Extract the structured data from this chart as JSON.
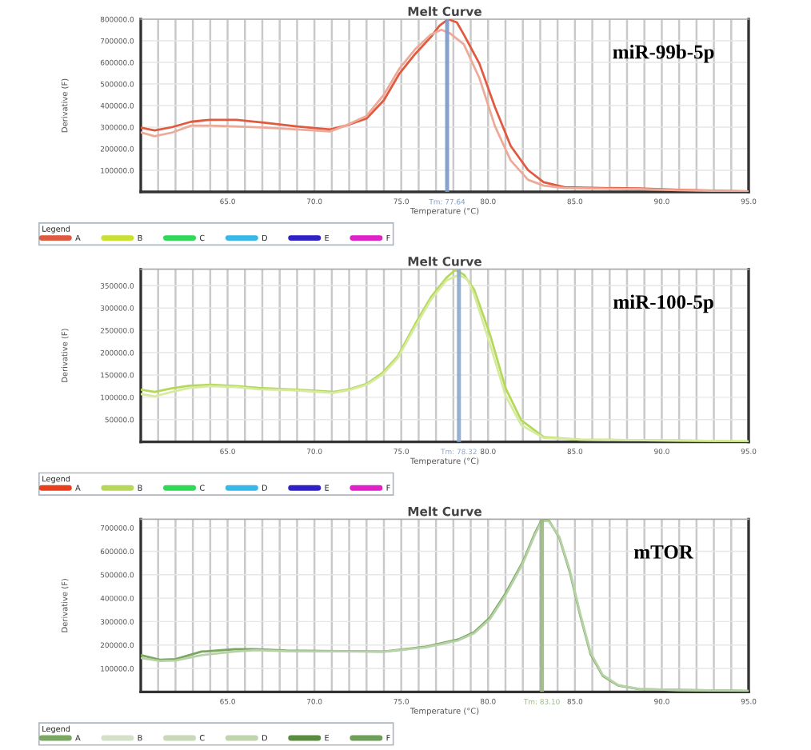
{
  "chart_data": [
    {
      "type": "line",
      "title": "Melt Curve",
      "xlabel": "Temperature (°C)",
      "ylabel": "Derivative (F)",
      "legend_title": "Legend",
      "legend": "bottom",
      "grid": true,
      "annotations": [
        "miR-99b-5p"
      ],
      "xlim": [
        60,
        95
      ],
      "ylim": [
        0,
        800000
      ],
      "xticks": [
        {
          "value": 60,
          "label": null
        },
        {
          "value": 61,
          "label": null
        },
        {
          "value": 62,
          "label": null
        },
        {
          "value": 63,
          "label": null
        },
        {
          "value": 64,
          "label": null
        },
        {
          "value": 65,
          "label": "65.0"
        },
        {
          "value": 66,
          "label": null
        },
        {
          "value": 67,
          "label": null
        },
        {
          "value": 68,
          "label": null
        },
        {
          "value": 69,
          "label": null
        },
        {
          "value": 70,
          "label": "70.0"
        },
        {
          "value": 71,
          "label": null
        },
        {
          "value": 72,
          "label": null
        },
        {
          "value": 73,
          "label": null
        },
        {
          "value": 74,
          "label": null
        },
        {
          "value": 75,
          "label": "75.0"
        },
        {
          "value": 76,
          "label": null
        },
        {
          "value": 77,
          "label": null
        },
        {
          "value": 78,
          "label": null
        },
        {
          "value": 79,
          "label": null
        },
        {
          "value": 80,
          "label": "80.0"
        },
        {
          "value": 81,
          "label": null
        },
        {
          "value": 82,
          "label": null
        },
        {
          "value": 83,
          "label": null
        },
        {
          "value": 84,
          "label": null
        },
        {
          "value": 85,
          "label": "85.0"
        },
        {
          "value": 86,
          "label": null
        },
        {
          "value": 87,
          "label": null
        },
        {
          "value": 88,
          "label": null
        },
        {
          "value": 89,
          "label": null
        },
        {
          "value": 90,
          "label": "90.0"
        },
        {
          "value": 91,
          "label": null
        },
        {
          "value": 92,
          "label": null
        },
        {
          "value": 93,
          "label": null
        },
        {
          "value": 94,
          "label": null
        },
        {
          "value": 95,
          "label": "95.0"
        }
      ],
      "yticks": [
        {
          "value": 100000,
          "label": "100000.0"
        },
        {
          "value": 200000,
          "label": "200000.0"
        },
        {
          "value": 300000,
          "label": "300000.0"
        },
        {
          "value": 400000,
          "label": "400000.0"
        },
        {
          "value": 500000,
          "label": "500000.0"
        },
        {
          "value": 600000,
          "label": "600000.0"
        },
        {
          "value": 700000,
          "label": "700000.0"
        },
        {
          "value": 800000,
          "label": "800000.0"
        }
      ],
      "ref_lines": [
        {
          "axis": "x",
          "value": 77.64,
          "label": "Tm: 77.64",
          "color": "#7a98c8"
        }
      ],
      "series": [
        {
          "name": "A",
          "color": "#e05a40",
          "x": [
            60,
            60.8,
            61.8,
            62.9,
            64,
            65.5,
            67.2,
            69,
            70.9,
            71.8,
            73,
            74,
            74.9,
            75.8,
            76.7,
            77.2,
            77.7,
            78.2,
            78.6,
            79.5,
            80.4,
            81.3,
            82.3,
            83.2,
            84.4,
            86.5,
            88.7,
            91,
            93,
            95
          ],
          "values": [
            298000,
            285000,
            300000,
            325000,
            334000,
            334000,
            320000,
            303000,
            289000,
            307000,
            340000,
            425000,
            549000,
            639000,
            717000,
            770000,
            800000,
            785000,
            729000,
            594000,
            392000,
            213000,
            101000,
            45000,
            22000,
            18000,
            16000,
            10000,
            6000,
            2000
          ]
        },
        {
          "color": "#eeaa98",
          "x": [
            60,
            60.8,
            61.8,
            62.9,
            64,
            65.5,
            67.2,
            69,
            70.9,
            71.8,
            73,
            74,
            74.9,
            75.8,
            76.7,
            77.3,
            77.8,
            78.6,
            79.5,
            80.4,
            81.3,
            82.3,
            83.2,
            84.4,
            86.5,
            88.7,
            91,
            93,
            95
          ],
          "values": [
            276000,
            258000,
            275000,
            307000,
            307000,
            303000,
            298000,
            289000,
            280000,
            307000,
            352000,
            450000,
            572000,
            661000,
            729000,
            751000,
            735000,
            684000,
            527000,
            303000,
            146000,
            56000,
            29000,
            18000,
            15000,
            13000,
            8000,
            5000,
            2000
          ]
        },
        {
          "name": "B",
          "color": "#c8e030"
        },
        {
          "name": "C",
          "color": "#30d858"
        },
        {
          "name": "D",
          "color": "#38b8e8"
        },
        {
          "name": "E",
          "color": "#3020c8"
        },
        {
          "name": "F",
          "color": "#e020c8"
        }
      ]
    },
    {
      "type": "line",
      "title": "Melt Curve",
      "xlabel": "Temperature (°C)",
      "ylabel": "Derivative (F)",
      "legend_title": "Legend",
      "legend": "bottom",
      "grid": true,
      "annotations": [
        "miR-100-5p"
      ],
      "xlim": [
        60,
        95
      ],
      "ylim": [
        0,
        387000
      ],
      "xticks": [
        {
          "value": 60,
          "label": null
        },
        {
          "value": 61,
          "label": null
        },
        {
          "value": 62,
          "label": null
        },
        {
          "value": 63,
          "label": null
        },
        {
          "value": 64,
          "label": null
        },
        {
          "value": 65,
          "label": "65.0"
        },
        {
          "value": 66,
          "label": null
        },
        {
          "value": 67,
          "label": null
        },
        {
          "value": 68,
          "label": null
        },
        {
          "value": 69,
          "label": null
        },
        {
          "value": 70,
          "label": "70.0"
        },
        {
          "value": 71,
          "label": null
        },
        {
          "value": 72,
          "label": null
        },
        {
          "value": 73,
          "label": null
        },
        {
          "value": 74,
          "label": null
        },
        {
          "value": 75,
          "label": "75.0"
        },
        {
          "value": 76,
          "label": null
        },
        {
          "value": 77,
          "label": null
        },
        {
          "value": 78,
          "label": null
        },
        {
          "value": 79,
          "label": null
        },
        {
          "value": 80,
          "label": "80.0"
        },
        {
          "value": 81,
          "label": null
        },
        {
          "value": 82,
          "label": null
        },
        {
          "value": 83,
          "label": null
        },
        {
          "value": 84,
          "label": null
        },
        {
          "value": 85,
          "label": "85.0"
        },
        {
          "value": 86,
          "label": null
        },
        {
          "value": 87,
          "label": null
        },
        {
          "value": 88,
          "label": null
        },
        {
          "value": 89,
          "label": null
        },
        {
          "value": 90,
          "label": "90.0"
        },
        {
          "value": 91,
          "label": null
        },
        {
          "value": 92,
          "label": null
        },
        {
          "value": 93,
          "label": null
        },
        {
          "value": 94,
          "label": null
        },
        {
          "value": 95,
          "label": "95.0"
        }
      ],
      "yticks": [
        {
          "value": 50000,
          "label": "50000.0"
        },
        {
          "value": 100000,
          "label": "100000.0"
        },
        {
          "value": 150000,
          "label": "150000.0"
        },
        {
          "value": 200000,
          "label": "200000.0"
        },
        {
          "value": 250000,
          "label": "250000.0"
        },
        {
          "value": 300000,
          "label": "300000.0"
        },
        {
          "value": 350000,
          "label": "350000.0"
        }
      ],
      "ref_lines": [
        {
          "axis": "x",
          "value": 78.32,
          "label": "Tm: 78.32",
          "color": "#8aa8cc"
        }
      ],
      "series": [
        {
          "name": "A",
          "color": "#e8401c"
        },
        {
          "name": "B",
          "color": "#b5d85a",
          "x": [
            60,
            60.8,
            61.8,
            62.8,
            64,
            65.5,
            66.8,
            68.5,
            69.9,
            71.1,
            72,
            73,
            73.9,
            74.8,
            75.8,
            76.7,
            77.6,
            78.1,
            78.6,
            79.2,
            80.1,
            81,
            81.9,
            83.2,
            85.3,
            88,
            91,
            95
          ],
          "values": [
            117000,
            112000,
            120000,
            126000,
            128000,
            125000,
            121000,
            118000,
            115000,
            112000,
            118000,
            130000,
            154000,
            192000,
            264000,
            324000,
            368000,
            385000,
            375000,
            341000,
            242000,
            121000,
            49000,
            11000,
            5000,
            4000,
            3000,
            1000
          ]
        },
        {
          "color": "#d6eba0",
          "x": [
            60,
            60.8,
            61.8,
            62.8,
            64,
            65.5,
            66.8,
            68.5,
            69.9,
            71.1,
            72,
            73,
            73.9,
            74.8,
            75.8,
            76.7,
            77.6,
            78.3,
            78.8,
            79.2,
            80.1,
            81,
            81.9,
            83.2,
            85.3,
            88,
            91,
            95
          ],
          "values": [
            107000,
            102000,
            112000,
            121000,
            125000,
            123000,
            118000,
            116000,
            113000,
            110000,
            116000,
            128000,
            150000,
            188000,
            258000,
            318000,
            362000,
            374000,
            365000,
            330000,
            220000,
            104000,
            38000,
            9000,
            5000,
            4000,
            3000,
            1000
          ]
        },
        {
          "name": "C",
          "color": "#30d858"
        },
        {
          "name": "D",
          "color": "#38b8e8"
        },
        {
          "name": "E",
          "color": "#3020c8"
        },
        {
          "name": "F",
          "color": "#e020c8"
        }
      ]
    },
    {
      "type": "line",
      "title": "Melt Curve",
      "xlabel": "Temperature (°C)",
      "ylabel": "Derivative (F)",
      "legend_title": "Legend",
      "legend": "bottom",
      "grid": true,
      "annotations": [
        "mTOR"
      ],
      "xlim": [
        60,
        95
      ],
      "ylim": [
        0,
        737000
      ],
      "xticks": [
        {
          "value": 60,
          "label": null
        },
        {
          "value": 61,
          "label": null
        },
        {
          "value": 62,
          "label": null
        },
        {
          "value": 63,
          "label": null
        },
        {
          "value": 64,
          "label": null
        },
        {
          "value": 65,
          "label": "65.0"
        },
        {
          "value": 66,
          "label": null
        },
        {
          "value": 67,
          "label": null
        },
        {
          "value": 68,
          "label": null
        },
        {
          "value": 69,
          "label": null
        },
        {
          "value": 70,
          "label": "70.0"
        },
        {
          "value": 71,
          "label": null
        },
        {
          "value": 72,
          "label": null
        },
        {
          "value": 73,
          "label": null
        },
        {
          "value": 74,
          "label": null
        },
        {
          "value": 75,
          "label": "75.0"
        },
        {
          "value": 76,
          "label": null
        },
        {
          "value": 77,
          "label": null
        },
        {
          "value": 78,
          "label": null
        },
        {
          "value": 79,
          "label": null
        },
        {
          "value": 80,
          "label": "80.0"
        },
        {
          "value": 81,
          "label": null
        },
        {
          "value": 82,
          "label": null
        },
        {
          "value": 83,
          "label": null
        },
        {
          "value": 84,
          "label": null
        },
        {
          "value": 85,
          "label": "85.0"
        },
        {
          "value": 86,
          "label": null
        },
        {
          "value": 87,
          "label": null
        },
        {
          "value": 88,
          "label": null
        },
        {
          "value": 89,
          "label": null
        },
        {
          "value": 90,
          "label": "90.0"
        },
        {
          "value": 91,
          "label": null
        },
        {
          "value": 92,
          "label": null
        },
        {
          "value": 93,
          "label": null
        },
        {
          "value": 94,
          "label": null
        },
        {
          "value": 95,
          "label": "95.0"
        }
      ],
      "yticks": [
        {
          "value": 100000,
          "label": "100000.0"
        },
        {
          "value": 200000,
          "label": "200000.0"
        },
        {
          "value": 300000,
          "label": "300000.0"
        },
        {
          "value": 400000,
          "label": "400000.0"
        },
        {
          "value": 500000,
          "label": "500000.0"
        },
        {
          "value": 600000,
          "label": "600000.0"
        },
        {
          "value": 700000,
          "label": "700000.0"
        }
      ],
      "ref_lines": [
        {
          "axis": "x",
          "value": 83.1,
          "label": "Tm: 83.10",
          "color": "#98b880"
        }
      ],
      "series": [
        {
          "name": "A",
          "color": "#7aa862",
          "x": [
            60,
            61.1,
            62,
            63.5,
            65.4,
            66.6,
            68.4,
            71.5,
            74,
            76.4,
            78.3,
            79.2,
            80.1,
            81,
            82,
            82.7,
            83.1,
            83.5,
            84.1,
            84.7,
            85.3,
            85.9,
            86.6,
            87.5,
            88.7,
            91,
            95
          ],
          "values": [
            157000,
            137000,
            140000,
            172000,
            182000,
            182000,
            176000,
            174000,
            172000,
            193000,
            224000,
            255000,
            317000,
            420000,
            555000,
            679000,
            735000,
            731000,
            658000,
            513000,
            327000,
            161000,
            68000,
            27000,
            12000,
            8000,
            4000
          ]
        },
        {
          "color": "#b8d2a8",
          "x": [
            60,
            61.1,
            62,
            63.5,
            65.4,
            66.6,
            68.4,
            71.5,
            74,
            76.4,
            78.3,
            79.2,
            80.1,
            81,
            82,
            82.7,
            83.1,
            83.5,
            84.1,
            84.7,
            85.3,
            85.9,
            86.6,
            87.5,
            88.7,
            91,
            95
          ],
          "values": [
            145000,
            132000,
            134000,
            157000,
            172000,
            178000,
            174000,
            173000,
            171000,
            190000,
            220000,
            250000,
            310000,
            412000,
            548000,
            672000,
            730000,
            728000,
            662000,
            520000,
            335000,
            168000,
            72000,
            29000,
            13000,
            8000,
            4000
          ]
        },
        {
          "name": "B",
          "color": "#d4e0c8"
        },
        {
          "name": "C",
          "color": "#c8d8b8"
        },
        {
          "name": "D",
          "color": "#c0d4ae"
        },
        {
          "name": "E",
          "color": "#5a8c40"
        },
        {
          "name": "F",
          "color": "#6e9e58"
        }
      ]
    }
  ]
}
